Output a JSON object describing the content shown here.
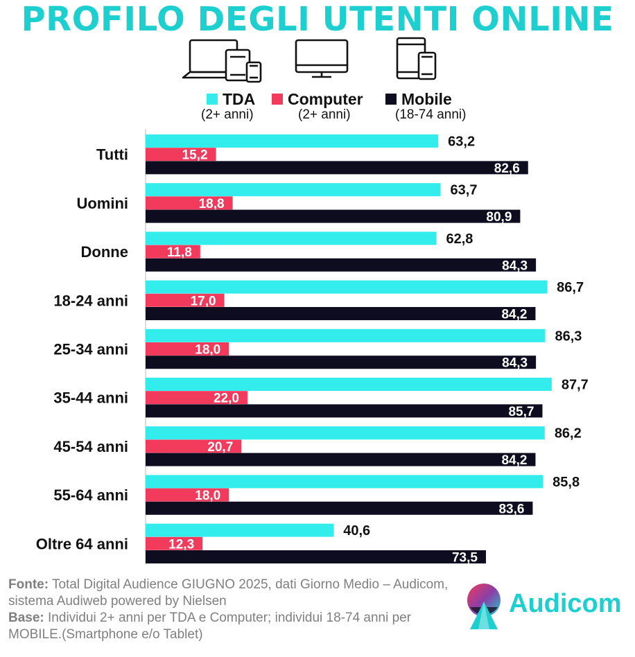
{
  "title": "PROFILO DEGLI UTENTI ONLINE",
  "icons": [
    "laptop-tablet-phone-icon",
    "monitor-icon",
    "tablet-phone-icon"
  ],
  "legend": [
    {
      "label": "TDA",
      "sub": "(2+ anni)",
      "color": "#33ecec"
    },
    {
      "label": "Computer",
      "sub": "(2+ anni)",
      "color": "#f23a5c"
    },
    {
      "label": "Mobile",
      "sub": "(18-74 anni)",
      "color": "#0d0d1f"
    }
  ],
  "chart_data": {
    "type": "bar",
    "orientation": "horizontal",
    "categories": [
      "Tutti",
      "Uomini",
      "Donne",
      "18-24 anni",
      "25-34 anni",
      "35-44 anni",
      "45-54 anni",
      "55-64 anni",
      "Oltre 64 anni"
    ],
    "series": [
      {
        "name": "TDA",
        "values": [
          63.2,
          63.7,
          62.8,
          86.7,
          86.3,
          87.7,
          86.2,
          85.8,
          40.6
        ],
        "labels": [
          "63,2",
          "63,7",
          "62,8",
          "86,7",
          "86,3",
          "87,7",
          "86,2",
          "85,8",
          "40,6"
        ],
        "color": "#33ecec"
      },
      {
        "name": "Computer",
        "values": [
          15.2,
          18.8,
          11.8,
          17.0,
          18.0,
          22.0,
          20.7,
          18.0,
          12.3
        ],
        "labels": [
          "15,2",
          "18,8",
          "11,8",
          "17,0",
          "18,0",
          "22,0",
          "20,7",
          "18,0",
          "12,3"
        ],
        "color": "#f23a5c"
      },
      {
        "name": "Mobile",
        "values": [
          82.6,
          80.9,
          84.3,
          84.2,
          84.3,
          85.7,
          84.2,
          83.6,
          73.5
        ],
        "labels": [
          "82,6",
          "80,9",
          "84,3",
          "84,2",
          "84,3",
          "85,7",
          "84,2",
          "83,6",
          "73,5"
        ],
        "color": "#0d0d1f"
      }
    ],
    "xlim": [
      0,
      100
    ],
    "grid": false,
    "legend_position": "top"
  },
  "footer": {
    "source_label": "Fonte:",
    "source_text": " Total Digital Audience GIUGNO 2025, dati Giorno Medio – Audicom, sistema Audiweb powered by Nielsen",
    "base_label": "Base:",
    "base_text": "  Individui 2+ anni per TDA e Computer; individui 18-74 anni per MOBILE.(Smartphone e/o Tablet)"
  },
  "logo": {
    "text": "Audicom"
  }
}
